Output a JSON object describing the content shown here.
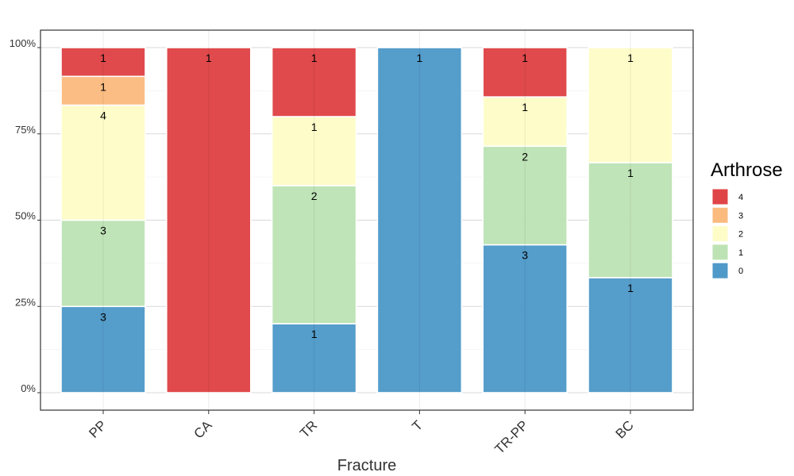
{
  "chart_data": {
    "type": "bar",
    "stacked": true,
    "normalized": true,
    "categories": [
      "PP",
      "CA",
      "TR",
      "T",
      "TR-PP",
      "BC"
    ],
    "series": [
      {
        "name": "0",
        "color": "#4f9ac9",
        "values": [
          3,
          0,
          1,
          1,
          3,
          1
        ]
      },
      {
        "name": "1",
        "color": "#bde3b5",
        "values": [
          3,
          0,
          2,
          0,
          2,
          1
        ]
      },
      {
        "name": "2",
        "color": "#fefdc8",
        "values": [
          4,
          0,
          1,
          0,
          1,
          1
        ]
      },
      {
        "name": "3",
        "color": "#fbbb7f",
        "values": [
          1,
          0,
          0,
          0,
          0,
          0
        ]
      },
      {
        "name": "4",
        "color": "#df4446",
        "values": [
          1,
          1,
          1,
          0,
          1,
          0
        ]
      }
    ],
    "xlabel": "Fracture",
    "ylabel": "",
    "ylim": [
      0,
      1
    ],
    "yticks": [
      0,
      0.25,
      0.5,
      0.75,
      1
    ],
    "ytick_labels": [
      "0%",
      "25%",
      "50%",
      "75%",
      "100%"
    ],
    "legend": {
      "title": "Arthrose",
      "position": "right",
      "order": [
        "4",
        "3",
        "2",
        "1",
        "0"
      ]
    },
    "grid": true
  }
}
